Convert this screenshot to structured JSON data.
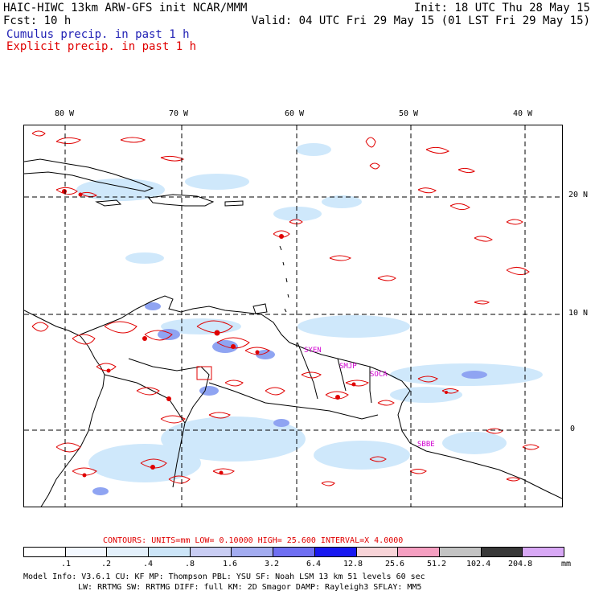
{
  "header": {
    "title": "HAIC-HIWC 13km ARW-GFS init   NCAR/MMM",
    "init": "Init: 18 UTC Thu 28 May 15",
    "fcst": "Fcst:   10 h",
    "valid": "Valid: 04 UTC Fri 29 May 15 (01 LST Fri 29 May 15)",
    "cumulus_label": "Cumulus precip. in past 1 h",
    "explicit_label": "Explicit precip. in past 1 h"
  },
  "map": {
    "lon_labels": [
      "80 W",
      "70 W",
      "60 W",
      "50 W",
      "40 W"
    ],
    "lat_labels": [
      "20 N",
      "10 N",
      "0"
    ],
    "stations": [
      "SYEN",
      "SMJP",
      "SOCA",
      "SBBE"
    ],
    "colors": {
      "coast": "#000000",
      "grid": "#000000",
      "explicit": "#e00000",
      "cumulus_light": "#cfe8fb",
      "cumulus_mid": "#7f9bf2",
      "station": "#d000d0"
    }
  },
  "contours": {
    "text": "CONTOURS:  UNITS=mm  LOW= 0.10000     HIGH=  25.600     INTERVAL=X  4.0000"
  },
  "colorbar": {
    "labels": [
      ".1",
      ".2",
      ".4",
      ".8",
      "1.6",
      "3.2",
      "6.4",
      "12.8",
      "25.6",
      "51.2",
      "102.4",
      "204.8"
    ],
    "units": "mm",
    "colors": [
      "#ffffff",
      "#f3f8ff",
      "#e3f0fb",
      "#cce5f8",
      "#c9cdf3",
      "#a3acf0",
      "#6f6ff2",
      "#1818f0",
      "#f8d4d8",
      "#f59fc1",
      "#c3c3c3",
      "#393939",
      "#d8a8f5"
    ]
  },
  "model_info": {
    "line1": "Model Info: V3.6.1   CU: KF      MP: Thompson    PBL: YSU     SF: Noah LSM    13 km   51 levels   60 sec",
    "line2": "LW: RRTMG   SW: RRTMG  DIFF: full   KM: 2D Smagor DAMP: Rayleigh3  SFLAY: MM5"
  }
}
